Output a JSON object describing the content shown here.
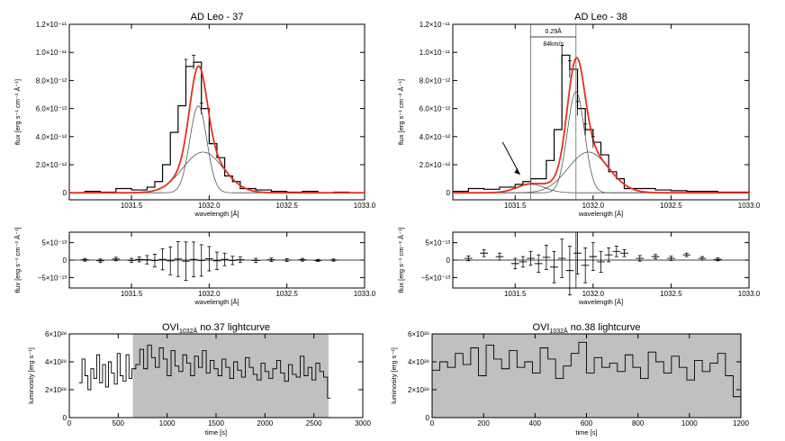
{
  "chart_data": [
    {
      "id": "spec37",
      "type": "line",
      "title": "AD Leo - 37",
      "xlabel": "wavelength [Å]",
      "ylabel": "flux [erg s⁻¹ cm⁻² Å⁻¹]",
      "xlim": [
        1031.1,
        1033.0
      ],
      "ylim": [
        -5e-13,
        1.2e-11
      ],
      "xticks": [
        1031.5,
        1032.0,
        1032.5,
        1033.0
      ],
      "xtick_labels": [
        "1031.5",
        "1032.0",
        "1032.5",
        "1033.0"
      ],
      "yticks": [
        0,
        2e-12,
        4e-12,
        6e-12,
        8e-12,
        1e-11,
        1.2e-11
      ],
      "ytick_labels": [
        "0",
        "2.0×10⁻¹²",
        "4.0×10⁻¹²",
        "6.0×10⁻¹²",
        "8.0×10⁻¹²",
        "1.0×10⁻¹¹",
        "1.2×10⁻¹¹"
      ],
      "observed_hist": {
        "x": [
          1031.1,
          1031.2,
          1031.3,
          1031.4,
          1031.5,
          1031.6,
          1031.65,
          1031.7,
          1031.75,
          1031.8,
          1031.85,
          1031.9,
          1031.95,
          1032.0,
          1032.05,
          1032.1,
          1032.15,
          1032.2,
          1032.3,
          1032.4,
          1032.5,
          1032.6,
          1032.7,
          1032.8,
          1032.9,
          1033.0
        ],
        "y": [
          0.0,
          1e-13,
          5e-14,
          3e-13,
          2e-13,
          4e-13,
          8e-13,
          2e-12,
          4.3e-12,
          6.2e-12,
          9e-12,
          9.3e-12,
          6e-12,
          3.5e-12,
          2.5e-12,
          1.2e-12,
          8e-13,
          3e-13,
          2e-13,
          1e-13,
          5e-14,
          1e-13,
          0.0,
          5e-14,
          0.0,
          0.0
        ]
      },
      "fit_total": {
        "components": [
          {
            "amp": 6.2e-12,
            "center": 1031.93,
            "sigma": 0.055
          },
          {
            "amp": 2.9e-12,
            "center": 1031.96,
            "sigma": 0.13
          }
        ]
      },
      "errorbars_x": [
        1031.85,
        1031.9,
        1031.95
      ],
      "errorbars_y": [
        9e-12,
        9.3e-12,
        6e-12
      ],
      "errorbars_err": [
        5e-13,
        5e-13,
        4e-13
      ]
    },
    {
      "id": "spec38",
      "type": "line",
      "title": "AD Leo - 38",
      "xlabel": "wavelength [Å]",
      "ylabel": "flux [erg s⁻¹ cm⁻² Å⁻¹]",
      "xlim": [
        1031.1,
        1033.0
      ],
      "ylim": [
        -5e-13,
        1.2e-11
      ],
      "xticks": [
        1031.5,
        1032.0,
        1032.5,
        1033.0
      ],
      "xtick_labels": [
        "1031.5",
        "1032.0",
        "1032.5",
        "1033.0"
      ],
      "yticks": [
        0,
        2e-12,
        4e-12,
        6e-12,
        8e-12,
        1e-11,
        1.2e-11
      ],
      "ytick_labels": [
        "0",
        "2.0×10⁻¹²",
        "4.0×10⁻¹²",
        "6.0×10⁻¹²",
        "8.0×10⁻¹²",
        "1.0×10⁻¹¹",
        "1.2×10⁻¹¹"
      ],
      "annotation": {
        "line1": "0.29Å",
        "line2": "84km/s",
        "x1": 1031.6,
        "x2": 1031.89
      },
      "observed_hist": {
        "x": [
          1031.1,
          1031.2,
          1031.3,
          1031.4,
          1031.5,
          1031.55,
          1031.6,
          1031.65,
          1031.7,
          1031.75,
          1031.8,
          1031.85,
          1031.9,
          1031.95,
          1032.0,
          1032.05,
          1032.1,
          1032.15,
          1032.2,
          1032.3,
          1032.4,
          1032.5,
          1032.6,
          1032.7,
          1032.8,
          1032.9,
          1033.0
        ],
        "y": [
          1e-13,
          3e-13,
          2.5e-13,
          4e-13,
          6e-13,
          8e-13,
          1e-12,
          1e-12,
          2.3e-12,
          4.5e-12,
          9.8e-12,
          8.8e-12,
          6e-12,
          4.5e-12,
          3.6e-12,
          2.7e-12,
          1.5e-12,
          1e-12,
          3e-13,
          3e-13,
          2e-13,
          1.5e-13,
          1e-13,
          1e-13,
          5e-14,
          5e-14,
          0.0
        ]
      },
      "fit_total": {
        "components": [
          {
            "amp": 7.2e-12,
            "center": 1031.89,
            "sigma": 0.055
          },
          {
            "amp": 2.9e-12,
            "center": 1031.97,
            "sigma": 0.13
          },
          {
            "amp": 6e-13,
            "center": 1031.6,
            "sigma": 0.09
          }
        ]
      },
      "errorbars_x": [
        1031.8,
        1031.85,
        1031.9,
        1031.95,
        1032.0
      ],
      "errorbars_y": [
        9.8e-12,
        8.8e-12,
        6e-12,
        4.5e-12,
        3.6e-12
      ],
      "errorbars_err": [
        7e-13,
        6e-13,
        5e-13,
        4e-13,
        4e-13
      ]
    },
    {
      "id": "res37",
      "type": "line",
      "xlabel": "wavelength [Å]",
      "ylabel": "flux [erg s⁻¹ cm⁻² Å⁻¹]",
      "xlim": [
        1031.1,
        1033.0
      ],
      "ylim": [
        -8e-13,
        8e-13
      ],
      "xticks": [
        1031.5,
        1032.0,
        1032.5,
        1033.0
      ],
      "xtick_labels": [
        "1031.5",
        "1032.0",
        "1032.5",
        "1033.0"
      ],
      "yticks": [
        -5e-13,
        0,
        5e-13
      ],
      "ytick_labels": [
        "−5×10⁻¹³",
        "0",
        "5×10⁻¹³"
      ],
      "x": [
        1031.2,
        1031.3,
        1031.4,
        1031.5,
        1031.55,
        1031.6,
        1031.65,
        1031.7,
        1031.75,
        1031.8,
        1031.85,
        1031.9,
        1031.95,
        1032.0,
        1032.05,
        1032.1,
        1032.15,
        1032.2,
        1032.3,
        1032.4,
        1032.5,
        1032.6,
        1032.7,
        1032.8
      ],
      "y": [
        1e-14,
        -2e-14,
        3e-14,
        -1e-14,
        2e-14,
        1e-14,
        -1e-14,
        2e-14,
        -2e-14,
        3e-14,
        -3e-14,
        2e-14,
        -1e-14,
        4e-14,
        -2e-14,
        2e-14,
        -1e-14,
        1e-14,
        -1e-14,
        1e-14,
        0.0,
        1e-14,
        -1e-14,
        0.0
      ],
      "err": [
        4e-14,
        5e-14,
        5e-14,
        6e-14,
        7e-14,
        1.2e-13,
        1.8e-13,
        3e-13,
        4e-13,
        5e-13,
        5.5e-13,
        5e-13,
        4.5e-13,
        3.5e-13,
        2.5e-13,
        1.8e-13,
        1.2e-13,
        8e-14,
        6e-14,
        5e-14,
        4e-14,
        4e-14,
        3e-14,
        3e-14
      ]
    },
    {
      "id": "res38",
      "type": "line",
      "xlabel": "wavelength [Å]",
      "ylabel": "flux [erg s⁻¹ cm⁻² Å⁻¹]",
      "xlim": [
        1031.1,
        1033.0
      ],
      "ylim": [
        -8e-13,
        8e-13
      ],
      "xticks": [
        1031.5,
        1032.0,
        1032.5,
        1033.0
      ],
      "xtick_labels": [
        "1031.5",
        "1032.0",
        "1032.5",
        "1033.0"
      ],
      "yticks": [
        -5e-13,
        0,
        5e-13
      ],
      "ytick_labels": [
        "−5×10⁻¹³",
        "0",
        "5×10⁻¹³"
      ],
      "vline": 1031.89,
      "x": [
        1031.2,
        1031.3,
        1031.4,
        1031.5,
        1031.55,
        1031.6,
        1031.65,
        1031.7,
        1031.75,
        1031.8,
        1031.85,
        1031.9,
        1031.95,
        1032.0,
        1032.05,
        1032.1,
        1032.15,
        1032.2,
        1032.3,
        1032.4,
        1032.5,
        1032.6,
        1032.7,
        1032.8
      ],
      "y": [
        5e-14,
        2e-13,
        1e-13,
        -1e-13,
        -5e-14,
        5e-14,
        -1e-13,
        8e-14,
        -2e-13,
        5e-14,
        -3e-13,
        2e-13,
        -1.5e-13,
        1e-13,
        -5e-14,
        1.5e-13,
        2.5e-13,
        2e-13,
        5e-14,
        1e-13,
        5e-14,
        1.5e-13,
        5e-14,
        2e-14
      ],
      "err": [
        7e-14,
        1e-13,
        1e-13,
        1.5e-13,
        1.5e-13,
        2e-13,
        2.5e-13,
        3.5e-13,
        4.5e-13,
        5.5e-13,
        7e-13,
        6e-13,
        5e-13,
        4e-13,
        3e-13,
        2e-13,
        1.5e-13,
        1e-13,
        8e-14,
        6e-14,
        6e-14,
        5e-14,
        5e-14,
        4e-14
      ]
    },
    {
      "id": "lc37",
      "type": "line",
      "title": "OVI<sub>1032Å</sub> no.37 lightcurve",
      "title_main": "OVI",
      "title_sub": "1032Å",
      "title_rest": " no.37 lightcurve",
      "xlabel": "time [s]",
      "ylabel": "luminosity [erg s⁻¹]",
      "xlim": [
        0,
        3000
      ],
      "ylim": [
        0,
        6e+28
      ],
      "xticks": [
        0,
        500,
        1000,
        1500,
        2000,
        2500,
        3000
      ],
      "xtick_labels": [
        "0",
        "500",
        "1000",
        "1500",
        "2000",
        "2500",
        "3000"
      ],
      "yticks": [
        0,
        2e+28,
        4e+28,
        6e+28
      ],
      "ytick_labels": [
        "0",
        "2×10²⁸",
        "4×10²⁸",
        "6×10²⁸"
      ],
      "shaded": [
        650,
        2650
      ],
      "step_x": [
        100,
        130,
        160,
        190,
        220,
        250,
        280,
        310,
        340,
        370,
        400,
        430,
        460,
        490,
        520,
        550,
        580,
        610,
        640,
        680,
        720,
        760,
        800,
        840,
        880,
        920,
        960,
        1000,
        1040,
        1080,
        1120,
        1160,
        1200,
        1240,
        1280,
        1320,
        1360,
        1400,
        1440,
        1480,
        1520,
        1560,
        1600,
        1640,
        1680,
        1720,
        1760,
        1800,
        1840,
        1880,
        1920,
        1960,
        2000,
        2040,
        2080,
        2120,
        2160,
        2200,
        2240,
        2280,
        2320,
        2360,
        2400,
        2440,
        2480,
        2520,
        2560,
        2600,
        2640
      ],
      "step_y": [
        2.5e+28,
        4.2e+28,
        3e+28,
        2e+28,
        3.5e+28,
        2.8e+28,
        4.5e+28,
        2.5e+28,
        3.8e+28,
        2.2e+28,
        4e+28,
        3.2e+28,
        2.4e+28,
        4.6e+28,
        3e+28,
        2.6e+28,
        4.5e+28,
        2.8e+28,
        3.5e+28,
        3.8e+28,
        4.9e+28,
        3.5e+28,
        5.2e+28,
        4.3e+28,
        3.6e+28,
        5e+28,
        4.2e+28,
        3e+28,
        4.8e+28,
        3.7e+28,
        3.3e+28,
        4.5e+28,
        3.9e+28,
        3e+28,
        4.4e+28,
        3.6e+28,
        4.8e+28,
        3.2e+28,
        4.1e+28,
        3.5e+28,
        3e+28,
        4.2e+28,
        3.6e+28,
        2.8e+28,
        4e+28,
        3.4e+28,
        2.9e+28,
        4.3e+28,
        3.6e+28,
        3.1e+28,
        2.7e+28,
        3.9e+28,
        3.3e+28,
        2.8e+28,
        3.5e+28,
        4.1e+28,
        3.2e+28,
        2.6e+28,
        3.8e+28,
        3.1e+28,
        2.9e+28,
        4.4e+28,
        3e+28,
        3.6e+28,
        2.7e+28,
        3.9e+28,
        3.3e+28,
        2.9e+28,
        1.4e+28
      ]
    },
    {
      "id": "lc38",
      "type": "line",
      "title_main": "OVI",
      "title_sub": "1032Å",
      "title_rest": " no.38 lightcurve",
      "xlabel": "time [s]",
      "ylabel": "luminosity [erg s⁻¹]",
      "xlim": [
        0,
        1200
      ],
      "ylim": [
        0,
        6e+28
      ],
      "xticks": [
        0,
        200,
        400,
        600,
        800,
        1000,
        1200
      ],
      "xtick_labels": [
        "0",
        "200",
        "400",
        "600",
        "800",
        "1000",
        "1200"
      ],
      "yticks": [
        0,
        2e+28,
        4e+28,
        6e+28
      ],
      "ytick_labels": [
        "0",
        "2×10²⁸",
        "4×10²⁸",
        "6×10²⁸"
      ],
      "shaded": [
        0,
        1200
      ],
      "step_x": [
        0,
        30,
        60,
        90,
        120,
        150,
        180,
        210,
        240,
        270,
        300,
        330,
        360,
        390,
        420,
        450,
        480,
        510,
        540,
        570,
        600,
        630,
        660,
        690,
        720,
        750,
        780,
        810,
        840,
        870,
        900,
        930,
        960,
        990,
        1020,
        1050,
        1080,
        1110,
        1140,
        1170
      ],
      "step_y": [
        3.4e+28,
        4e+28,
        3.6e+28,
        4.6e+28,
        3.8e+28,
        5e+28,
        3e+28,
        5.2e+28,
        4.2e+28,
        3.5e+28,
        4.8e+28,
        3.6e+28,
        4e+28,
        3.2e+28,
        5e+28,
        4.2e+28,
        2.8e+28,
        3.7e+28,
        4.6e+28,
        5.4e+28,
        3.2e+28,
        4.3e+28,
        3.6e+28,
        3.9e+28,
        3.3e+28,
        4.5e+28,
        3.6e+28,
        2.8e+28,
        4.7e+28,
        4e+28,
        3.2e+28,
        4.4e+28,
        3.6e+28,
        2.7e+28,
        4.1e+28,
        3.3e+28,
        3.9e+28,
        4.6e+28,
        3e+28,
        1.5e+28
      ]
    }
  ]
}
